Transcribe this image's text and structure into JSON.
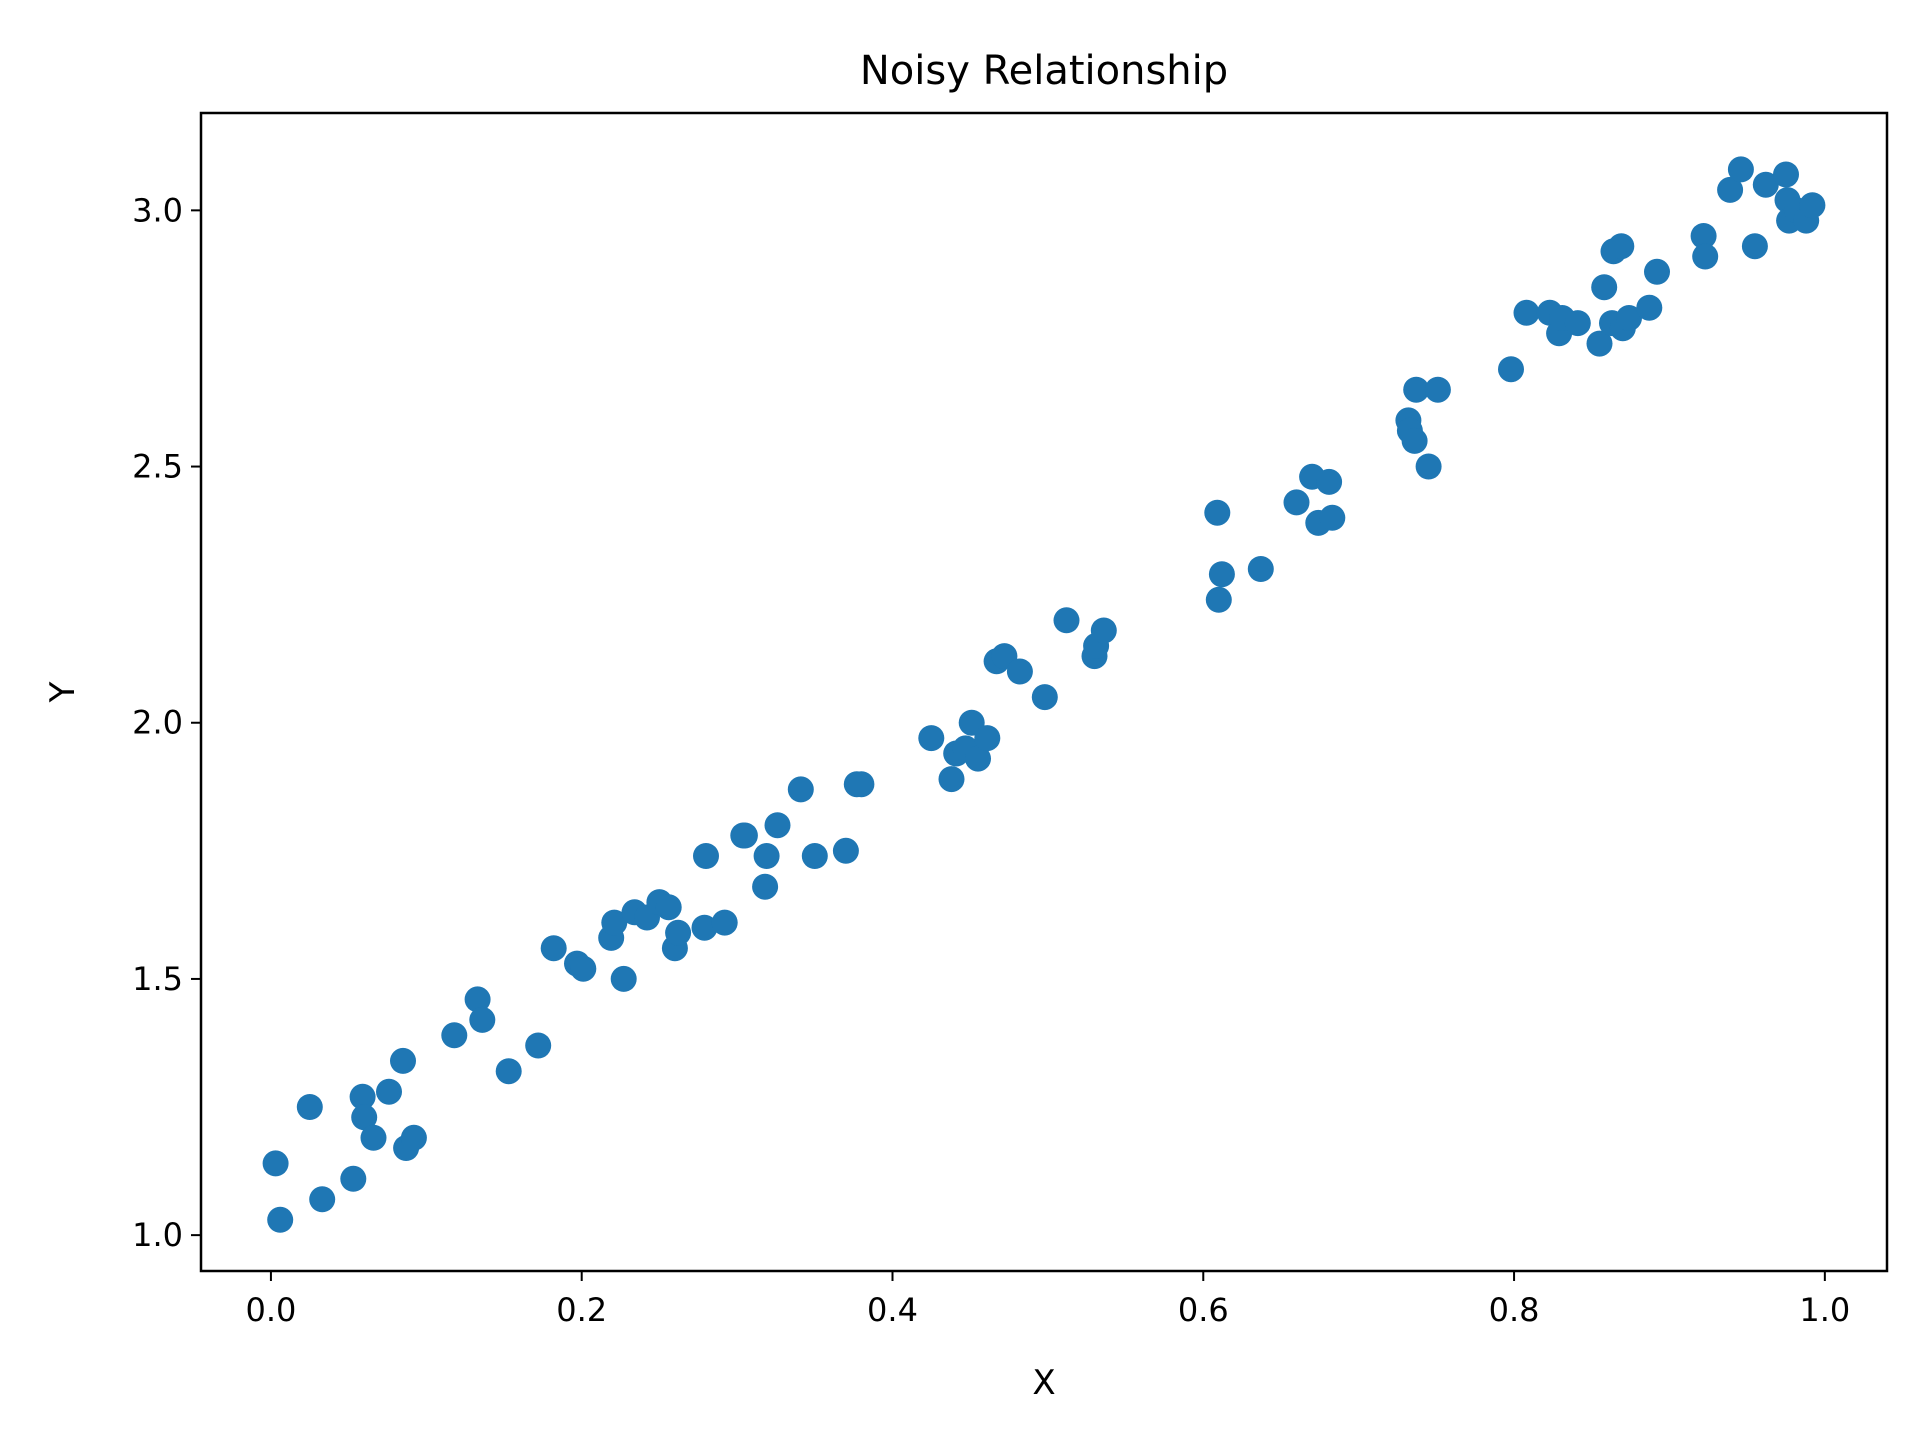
{
  "chart_data": {
    "type": "scatter",
    "title": "Noisy Relationship",
    "xlabel": "X",
    "ylabel": "Y",
    "xlim": [
      -0.045,
      1.04
    ],
    "ylim": [
      0.93,
      3.19
    ],
    "xticks": [
      0.0,
      0.2,
      0.4,
      0.6,
      0.8,
      1.0
    ],
    "xtick_labels": [
      "0.0",
      "0.2",
      "0.4",
      "0.6",
      "0.8",
      "1.0"
    ],
    "yticks": [
      1.0,
      1.5,
      2.0,
      2.5,
      3.0
    ],
    "ytick_labels": [
      "1.0",
      "1.5",
      "2.0",
      "2.5",
      "3.0"
    ],
    "grid": false,
    "legend": "none",
    "marker_color": "#1f77b4",
    "points": [
      {
        "x": 0.003,
        "y": 1.14
      },
      {
        "x": 0.006,
        "y": 1.03
      },
      {
        "x": 0.025,
        "y": 1.25
      },
      {
        "x": 0.033,
        "y": 1.07
      },
      {
        "x": 0.053,
        "y": 1.11
      },
      {
        "x": 0.059,
        "y": 1.27
      },
      {
        "x": 0.06,
        "y": 1.23
      },
      {
        "x": 0.066,
        "y": 1.19
      },
      {
        "x": 0.076,
        "y": 1.28
      },
      {
        "x": 0.085,
        "y": 1.34
      },
      {
        "x": 0.087,
        "y": 1.17
      },
      {
        "x": 0.092,
        "y": 1.19
      },
      {
        "x": 0.118,
        "y": 1.39
      },
      {
        "x": 0.133,
        "y": 1.46
      },
      {
        "x": 0.136,
        "y": 1.42
      },
      {
        "x": 0.153,
        "y": 1.32
      },
      {
        "x": 0.172,
        "y": 1.37
      },
      {
        "x": 0.182,
        "y": 1.56
      },
      {
        "x": 0.197,
        "y": 1.53
      },
      {
        "x": 0.201,
        "y": 1.52
      },
      {
        "x": 0.219,
        "y": 1.58
      },
      {
        "x": 0.221,
        "y": 1.61
      },
      {
        "x": 0.227,
        "y": 1.5
      },
      {
        "x": 0.234,
        "y": 1.63
      },
      {
        "x": 0.242,
        "y": 1.62
      },
      {
        "x": 0.25,
        "y": 1.65
      },
      {
        "x": 0.256,
        "y": 1.64
      },
      {
        "x": 0.26,
        "y": 1.56
      },
      {
        "x": 0.262,
        "y": 1.59
      },
      {
        "x": 0.279,
        "y": 1.6
      },
      {
        "x": 0.28,
        "y": 1.74
      },
      {
        "x": 0.292,
        "y": 1.61
      },
      {
        "x": 0.304,
        "y": 1.78
      },
      {
        "x": 0.305,
        "y": 1.78
      },
      {
        "x": 0.318,
        "y": 1.68
      },
      {
        "x": 0.319,
        "y": 1.74
      },
      {
        "x": 0.326,
        "y": 1.8
      },
      {
        "x": 0.341,
        "y": 1.87
      },
      {
        "x": 0.35,
        "y": 1.74
      },
      {
        "x": 0.37,
        "y": 1.75
      },
      {
        "x": 0.377,
        "y": 1.88
      },
      {
        "x": 0.38,
        "y": 1.88
      },
      {
        "x": 0.425,
        "y": 1.97
      },
      {
        "x": 0.438,
        "y": 1.89
      },
      {
        "x": 0.441,
        "y": 1.94
      },
      {
        "x": 0.447,
        "y": 1.95
      },
      {
        "x": 0.451,
        "y": 2.0
      },
      {
        "x": 0.455,
        "y": 1.93
      },
      {
        "x": 0.461,
        "y": 1.97
      },
      {
        "x": 0.467,
        "y": 2.12
      },
      {
        "x": 0.472,
        "y": 2.13
      },
      {
        "x": 0.482,
        "y": 2.1
      },
      {
        "x": 0.498,
        "y": 2.05
      },
      {
        "x": 0.512,
        "y": 2.2
      },
      {
        "x": 0.53,
        "y": 2.13
      },
      {
        "x": 0.531,
        "y": 2.15
      },
      {
        "x": 0.536,
        "y": 2.18
      },
      {
        "x": 0.609,
        "y": 2.41
      },
      {
        "x": 0.61,
        "y": 2.24
      },
      {
        "x": 0.612,
        "y": 2.29
      },
      {
        "x": 0.637,
        "y": 2.3
      },
      {
        "x": 0.66,
        "y": 2.43
      },
      {
        "x": 0.67,
        "y": 2.48
      },
      {
        "x": 0.674,
        "y": 2.39
      },
      {
        "x": 0.681,
        "y": 2.47
      },
      {
        "x": 0.683,
        "y": 2.4
      },
      {
        "x": 0.732,
        "y": 2.59
      },
      {
        "x": 0.733,
        "y": 2.57
      },
      {
        "x": 0.736,
        "y": 2.55
      },
      {
        "x": 0.737,
        "y": 2.65
      },
      {
        "x": 0.745,
        "y": 2.5
      },
      {
        "x": 0.751,
        "y": 2.65
      },
      {
        "x": 0.798,
        "y": 2.69
      },
      {
        "x": 0.808,
        "y": 2.8
      },
      {
        "x": 0.823,
        "y": 2.8
      },
      {
        "x": 0.829,
        "y": 2.76
      },
      {
        "x": 0.831,
        "y": 2.79
      },
      {
        "x": 0.841,
        "y": 2.78
      },
      {
        "x": 0.855,
        "y": 2.74
      },
      {
        "x": 0.858,
        "y": 2.85
      },
      {
        "x": 0.863,
        "y": 2.78
      },
      {
        "x": 0.864,
        "y": 2.92
      },
      {
        "x": 0.869,
        "y": 2.93
      },
      {
        "x": 0.87,
        "y": 2.77
      },
      {
        "x": 0.874,
        "y": 2.79
      },
      {
        "x": 0.887,
        "y": 2.81
      },
      {
        "x": 0.892,
        "y": 2.88
      },
      {
        "x": 0.922,
        "y": 2.95
      },
      {
        "x": 0.923,
        "y": 2.91
      },
      {
        "x": 0.939,
        "y": 3.04
      },
      {
        "x": 0.946,
        "y": 3.08
      },
      {
        "x": 0.955,
        "y": 2.93
      },
      {
        "x": 0.962,
        "y": 3.05
      },
      {
        "x": 0.975,
        "y": 3.07
      },
      {
        "x": 0.976,
        "y": 3.02
      },
      {
        "x": 0.977,
        "y": 2.98
      },
      {
        "x": 0.982,
        "y": 3.0
      },
      {
        "x": 0.988,
        "y": 2.98
      },
      {
        "x": 0.992,
        "y": 3.01
      }
    ]
  }
}
